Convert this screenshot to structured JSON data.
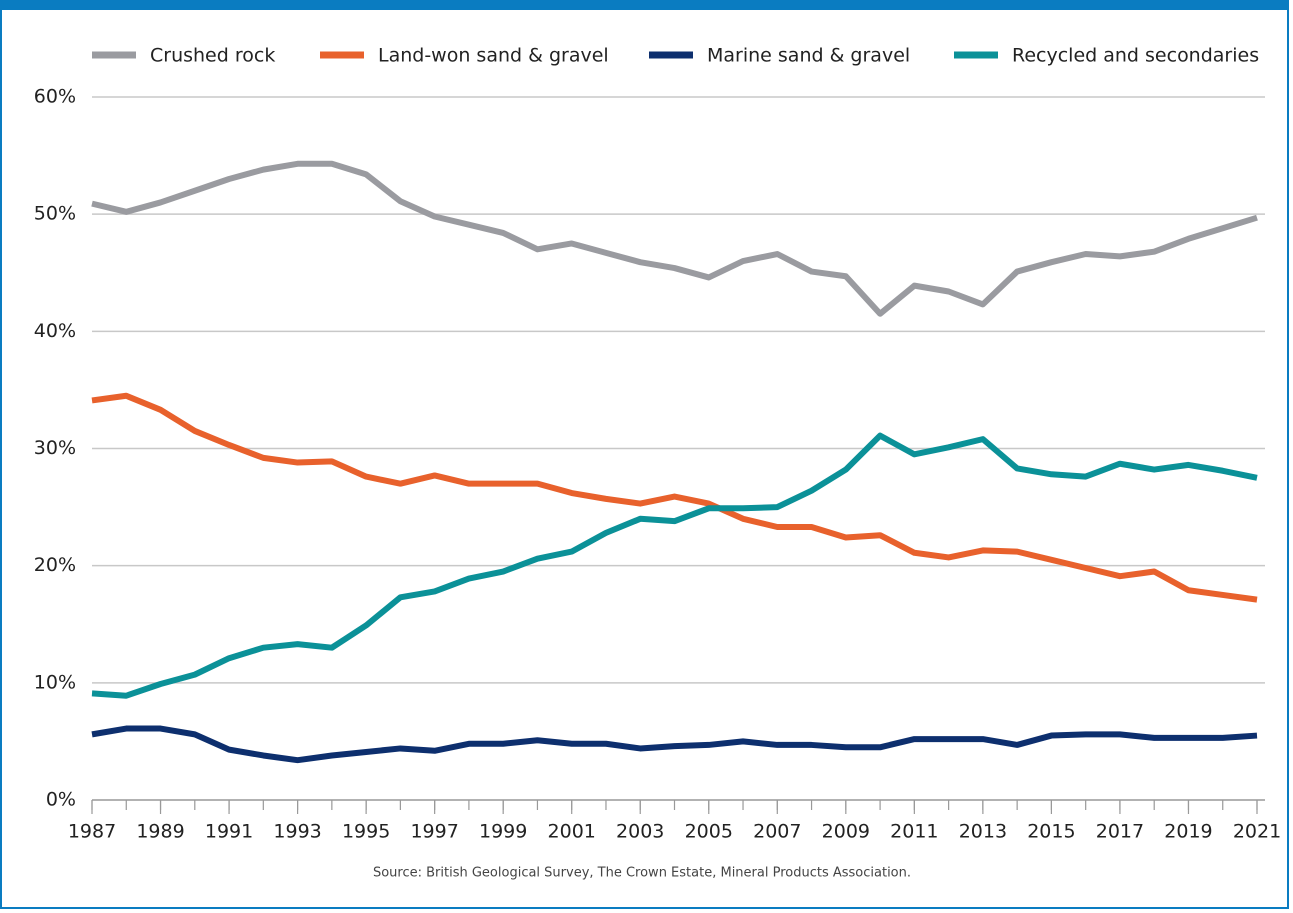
{
  "chart_data": {
    "type": "line",
    "source": "Source: British Geological Survey, The Crown Estate, Mineral Products Association.",
    "x": [
      1987,
      1988,
      1989,
      1990,
      1991,
      1992,
      1993,
      1994,
      1995,
      1996,
      1997,
      1998,
      1999,
      2000,
      2001,
      2002,
      2003,
      2004,
      2005,
      2006,
      2007,
      2008,
      2009,
      2010,
      2011,
      2012,
      2013,
      2014,
      2015,
      2016,
      2017,
      2018,
      2019,
      2020,
      2021
    ],
    "series": [
      {
        "name": "Crushed rock",
        "color": "#9a9ba0",
        "values": [
          50.9,
          50.2,
          51.0,
          52.0,
          53.0,
          53.8,
          54.3,
          54.3,
          53.4,
          51.1,
          49.8,
          49.1,
          48.4,
          47.0,
          47.5,
          46.7,
          45.9,
          45.4,
          44.6,
          46.0,
          46.6,
          45.1,
          44.7,
          41.5,
          43.9,
          43.4,
          42.3,
          45.1,
          45.9,
          46.6,
          46.4,
          46.8,
          47.9,
          48.8,
          49.7
        ]
      },
      {
        "name": "Land-won sand & gravel",
        "color": "#e8612c",
        "values": [
          34.1,
          34.5,
          33.3,
          31.5,
          30.3,
          29.2,
          28.8,
          28.9,
          27.6,
          27.0,
          27.7,
          27.0,
          27.0,
          27.0,
          26.2,
          25.7,
          25.3,
          25.9,
          25.3,
          24.0,
          23.3,
          23.3,
          22.4,
          22.6,
          21.1,
          20.7,
          21.3,
          21.2,
          20.5,
          19.8,
          19.1,
          19.5,
          17.9,
          17.5,
          17.1
        ]
      },
      {
        "name": "Marine sand & gravel",
        "color": "#0d2f6e",
        "values": [
          5.6,
          6.1,
          6.1,
          5.6,
          4.3,
          3.8,
          3.4,
          3.8,
          4.1,
          4.4,
          4.2,
          4.8,
          4.8,
          5.1,
          4.8,
          4.8,
          4.4,
          4.6,
          4.7,
          5.0,
          4.7,
          4.7,
          4.5,
          4.5,
          5.2,
          5.2,
          5.2,
          4.7,
          5.5,
          5.6,
          5.6,
          5.3,
          5.3,
          5.3,
          5.5
        ]
      },
      {
        "name": "Recycled and secondaries",
        "color": "#0b9198",
        "values": [
          9.1,
          8.9,
          9.9,
          10.7,
          12.1,
          13.0,
          13.3,
          13.0,
          14.9,
          17.3,
          17.8,
          18.9,
          19.5,
          20.6,
          21.2,
          22.8,
          24.0,
          23.8,
          24.9,
          24.9,
          25.0,
          26.4,
          28.2,
          31.1,
          29.5,
          30.1,
          30.8,
          28.3,
          27.8,
          27.6,
          28.7,
          28.2,
          28.6,
          28.1,
          27.5
        ]
      }
    ],
    "xlim": [
      1987,
      2021
    ],
    "xticks": [
      1987,
      1989,
      1991,
      1993,
      1995,
      1997,
      1999,
      2001,
      2003,
      2005,
      2007,
      2009,
      2011,
      2013,
      2015,
      2017,
      2019,
      2021
    ],
    "ylim": [
      0,
      60
    ],
    "yticks": [
      {
        "value": 0,
        "label": "0%"
      },
      {
        "value": 10,
        "label": "10%"
      },
      {
        "value": 20,
        "label": "20%"
      },
      {
        "value": 30,
        "label": "30%"
      },
      {
        "value": 40,
        "label": "40%"
      },
      {
        "value": 50,
        "label": "50%"
      },
      {
        "value": 60,
        "label": "60%"
      }
    ],
    "grid": true,
    "legend": "top"
  }
}
